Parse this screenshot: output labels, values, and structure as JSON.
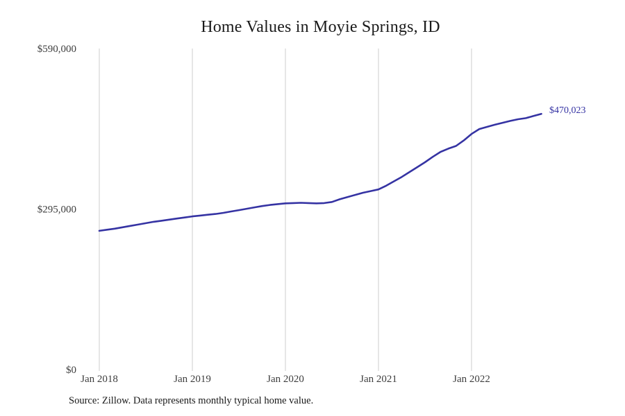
{
  "chart": {
    "title": "Home Values in Moyie Springs, ID",
    "end_label": "$470,023",
    "source_note": "Source: Zillow. Data represents monthly typical home value.",
    "colors": {
      "line": "#3533a3",
      "grid": "#cccccc",
      "title": "#1a1a1a",
      "axis_label": "#3d3d3d"
    }
  },
  "chart_data": {
    "type": "line",
    "title": "Home Values in Moyie Springs, ID",
    "ylabel": "",
    "xlabel": "",
    "ylim": [
      0,
      590000
    ],
    "grid": "vertical-only",
    "legend": "none",
    "last_point_label": "$470,023",
    "source": "Source: Zillow. Data represents monthly typical home value.",
    "x_ticks": [
      {
        "label": "Jan 2018",
        "month_index": 0
      },
      {
        "label": "Jan 2019",
        "month_index": 12
      },
      {
        "label": "Jan 2020",
        "month_index": 24
      },
      {
        "label": "Jan 2021",
        "month_index": 36
      },
      {
        "label": "Jan 2022",
        "month_index": 48
      }
    ],
    "y_ticks": [
      {
        "label": "$0",
        "value": 0
      },
      {
        "label": "$295,000",
        "value": 295000
      },
      {
        "label": "$590,000",
        "value": 590000
      }
    ],
    "x": [
      "Jan 2018",
      "Feb 2018",
      "Mar 2018",
      "Apr 2018",
      "May 2018",
      "Jun 2018",
      "Jul 2018",
      "Aug 2018",
      "Sep 2018",
      "Oct 2018",
      "Nov 2018",
      "Dec 2018",
      "Jan 2019",
      "Feb 2019",
      "Mar 2019",
      "Apr 2019",
      "May 2019",
      "Jun 2019",
      "Jul 2019",
      "Aug 2019",
      "Sep 2019",
      "Oct 2019",
      "Nov 2019",
      "Dec 2019",
      "Jan 2020",
      "Feb 2020",
      "Mar 2020",
      "Apr 2020",
      "May 2020",
      "Jun 2020",
      "Jul 2020",
      "Aug 2020",
      "Sep 2020",
      "Oct 2020",
      "Nov 2020",
      "Dec 2020",
      "Jan 2021",
      "Feb 2021",
      "Mar 2021",
      "Apr 2021",
      "May 2021",
      "Jun 2021",
      "Jul 2021",
      "Aug 2021",
      "Sep 2021",
      "Oct 2021",
      "Nov 2021",
      "Dec 2021",
      "Jan 2022",
      "Feb 2022",
      "Mar 2022",
      "Apr 2022",
      "May 2022",
      "Jun 2022",
      "Jul 2022",
      "Aug 2022",
      "Sep 2022",
      "Oct 2022"
    ],
    "values": [
      255000,
      257000,
      259000,
      261500,
      264000,
      266500,
      269000,
      271500,
      273500,
      275500,
      277500,
      279500,
      281500,
      283000,
      284500,
      286000,
      288000,
      290500,
      293000,
      295500,
      298000,
      300500,
      302500,
      304000,
      305500,
      306000,
      306500,
      306000,
      305500,
      306000,
      308000,
      313000,
      317000,
      321000,
      325000,
      328000,
      331000,
      338000,
      346000,
      354000,
      363000,
      372000,
      381000,
      391000,
      400000,
      406000,
      411000,
      421000,
      433000,
      442000,
      446000,
      450000,
      453500,
      457000,
      460000,
      462000,
      466000,
      470023
    ]
  }
}
